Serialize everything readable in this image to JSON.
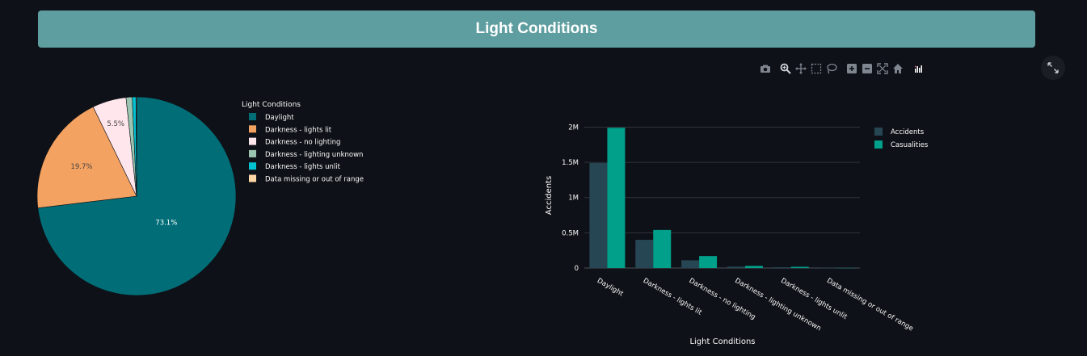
{
  "page": {
    "title": "Light Conditions"
  },
  "modebar": {
    "icons": [
      "camera-icon",
      "zoom-icon",
      "pan-icon",
      "box-select-icon",
      "lasso-select-icon",
      "zoom-in-icon",
      "zoom-out-icon",
      "autoscale-icon",
      "reset-axes-icon",
      "plotly-logo-icon"
    ]
  },
  "fullscreen": {
    "icon": "expand-icon"
  },
  "chart_data": [
    {
      "type": "pie",
      "legend_title": "Light Conditions",
      "legend_placement": "right",
      "labels": [
        "Daylight",
        "Darkness - lights lit",
        "Darkness - no lighting",
        "Darkness - lighting unknown",
        "Darkness - lights unlit",
        "Data missing or out of range"
      ],
      "values": [
        73.1,
        19.7,
        5.5,
        1.0,
        0.6,
        0.1
      ],
      "text_labels": [
        "73.1%",
        "19.7%",
        "5.5%",
        "",
        "",
        ""
      ],
      "colors": [
        "#006d77",
        "#f4a261",
        "#ffe5ec",
        "#9bc5b0",
        "#00c2d1",
        "#ffd6a5"
      ]
    },
    {
      "type": "bar",
      "xlabel": "Light Conditions",
      "ylabel": "Accidents",
      "categories": [
        "Daylight",
        "Darkness - lights lit",
        "Darkness - no lighting",
        "Darkness - lighting unknown",
        "Darkness - lights unlit",
        "Data missing or out of range"
      ],
      "series": [
        {
          "name": "Accidents",
          "color": "#264653",
          "values": [
            1490000,
            400000,
            110000,
            20000,
            11000,
            500
          ]
        },
        {
          "name": "Casualities",
          "color": "#00a08a",
          "values": [
            1990000,
            540000,
            170000,
            30000,
            17000,
            800
          ]
        }
      ],
      "ylim": [
        0,
        2200000
      ],
      "yticks": [
        0,
        500000,
        1000000,
        1500000,
        2000000
      ],
      "ytick_labels": [
        "0",
        "0.5M",
        "1M",
        "1.5M",
        "2M"
      ],
      "grid": true,
      "legend_placement": "top-right"
    }
  ]
}
